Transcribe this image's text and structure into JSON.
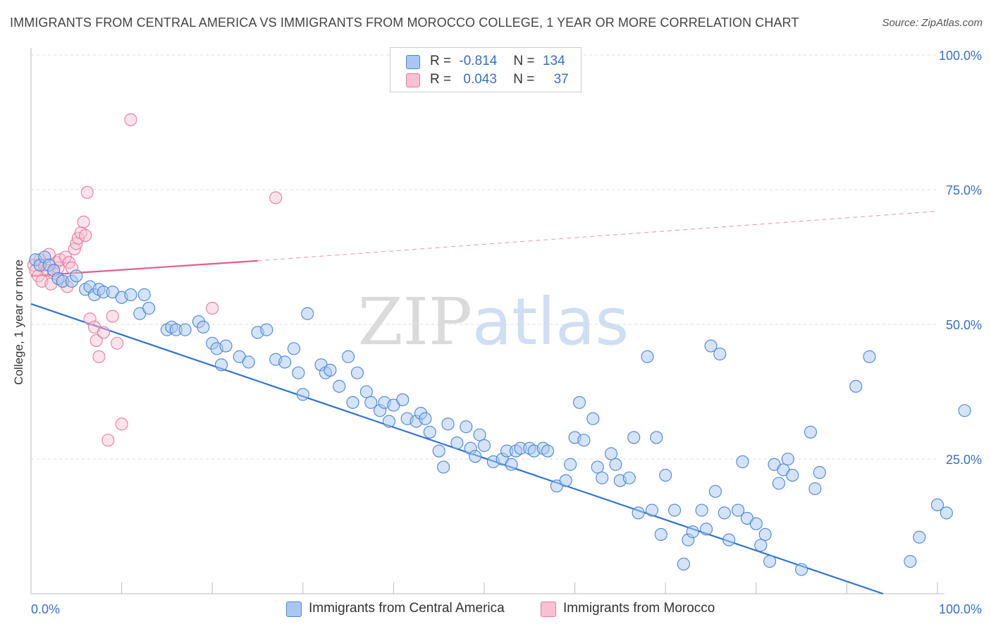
{
  "title": "IMMIGRANTS FROM CENTRAL AMERICA VS IMMIGRANTS FROM MOROCCO COLLEGE, 1 YEAR OR MORE CORRELATION CHART",
  "source": "Source: ZipAtlas.com",
  "watermark": "ZIPatlas",
  "legend": {
    "rows": [
      {
        "r_label": "R =",
        "r_value": "-0.814",
        "n_label": "N =",
        "n_value": "134"
      },
      {
        "r_label": "R =",
        "r_value": "0.043",
        "n_label": "N =",
        "n_value": "37"
      }
    ]
  },
  "colors": {
    "blue_fill": "#a9c8ef",
    "blue_stroke": "#4a86d8",
    "blue_line": "#2f74d0",
    "pink_fill": "#f7c0d3",
    "pink_stroke": "#e87aa0",
    "pink_line": "#e0608a",
    "grid": "#dddddd",
    "tick_label": "#3a6fc4"
  },
  "chart_data": {
    "type": "scatter",
    "title": "IMMIGRANTS FROM CENTRAL AMERICA VS IMMIGRANTS FROM MOROCCO COLLEGE, 1 YEAR OR MORE CORRELATION CHART",
    "xlabel": "",
    "ylabel": "College, 1 year or more",
    "xlim": [
      0,
      100
    ],
    "ylim": [
      0,
      100
    ],
    "x_tick_labels": [
      "0.0%",
      "100.0%"
    ],
    "y_tick_labels": [
      "25.0%",
      "50.0%",
      "75.0%",
      "100.0%"
    ],
    "y_ticks": [
      25,
      50,
      75,
      100
    ],
    "grid": true,
    "legend_position": "top-center",
    "series": [
      {
        "name": "Immigrants from Central America",
        "r": -0.814,
        "n": 134,
        "trend": {
          "x": [
            0,
            94
          ],
          "y": [
            53.8,
            0
          ]
        },
        "points": [
          [
            0.5,
            62
          ],
          [
            1,
            61
          ],
          [
            1.5,
            62.5
          ],
          [
            2,
            61
          ],
          [
            2.5,
            60
          ],
          [
            3,
            58.5
          ],
          [
            3.5,
            58
          ],
          [
            4.5,
            58
          ],
          [
            5,
            59
          ],
          [
            6,
            56.5
          ],
          [
            6.5,
            57
          ],
          [
            7,
            55.5
          ],
          [
            7.5,
            56.5
          ],
          [
            8,
            56
          ],
          [
            9,
            56
          ],
          [
            10,
            55
          ],
          [
            11,
            55.5
          ],
          [
            12,
            52
          ],
          [
            12.5,
            55.5
          ],
          [
            13,
            53
          ],
          [
            15,
            49
          ],
          [
            15.5,
            49.5
          ],
          [
            16,
            49
          ],
          [
            17,
            49
          ],
          [
            18.5,
            50.5
          ],
          [
            19,
            49.5
          ],
          [
            20,
            46.5
          ],
          [
            20.5,
            45.5
          ],
          [
            21,
            42.5
          ],
          [
            21.5,
            46
          ],
          [
            23,
            44
          ],
          [
            24,
            43
          ],
          [
            25,
            48.5
          ],
          [
            26,
            49
          ],
          [
            27,
            43.5
          ],
          [
            28,
            43
          ],
          [
            29,
            45.5
          ],
          [
            29.5,
            41
          ],
          [
            30,
            37
          ],
          [
            30.5,
            52
          ],
          [
            32,
            42.5
          ],
          [
            32.5,
            41
          ],
          [
            33,
            41.5
          ],
          [
            34,
            38.5
          ],
          [
            35,
            44
          ],
          [
            35.5,
            35.5
          ],
          [
            36,
            41
          ],
          [
            37,
            37.5
          ],
          [
            37.5,
            35.5
          ],
          [
            38.5,
            34
          ],
          [
            39,
            35.5
          ],
          [
            39.5,
            32
          ],
          [
            40,
            35
          ],
          [
            41,
            36
          ],
          [
            41.5,
            32.5
          ],
          [
            42.5,
            32
          ],
          [
            43,
            33.5
          ],
          [
            43.5,
            32.5
          ],
          [
            44,
            30
          ],
          [
            45,
            26.5
          ],
          [
            45.5,
            23.5
          ],
          [
            46,
            31.5
          ],
          [
            47,
            28
          ],
          [
            48,
            31
          ],
          [
            48.5,
            27
          ],
          [
            49,
            25.5
          ],
          [
            49.5,
            29.5
          ],
          [
            50,
            27.5
          ],
          [
            51,
            24.5
          ],
          [
            52,
            25
          ],
          [
            52.5,
            26.5
          ],
          [
            53,
            24
          ],
          [
            53.5,
            26.5
          ],
          [
            54,
            27
          ],
          [
            55,
            27
          ],
          [
            55.5,
            26.5
          ],
          [
            56.5,
            27
          ],
          [
            57,
            26.5
          ],
          [
            58,
            20
          ],
          [
            59,
            21
          ],
          [
            59.5,
            24
          ],
          [
            60,
            29
          ],
          [
            60.5,
            35.5
          ],
          [
            61,
            28.5
          ],
          [
            62,
            32.5
          ],
          [
            62.5,
            23.5
          ],
          [
            63,
            21.5
          ],
          [
            64,
            26
          ],
          [
            64.5,
            24
          ],
          [
            65,
            21
          ],
          [
            66,
            21.5
          ],
          [
            66.5,
            29
          ],
          [
            67,
            15
          ],
          [
            68,
            44
          ],
          [
            68.5,
            15.5
          ],
          [
            69,
            29
          ],
          [
            69.5,
            11
          ],
          [
            70,
            22
          ],
          [
            71,
            15.5
          ],
          [
            72,
            5.5
          ],
          [
            72.5,
            10
          ],
          [
            73,
            11.5
          ],
          [
            74,
            15.5
          ],
          [
            74.5,
            12
          ],
          [
            75,
            46
          ],
          [
            75.5,
            19
          ],
          [
            76,
            44.5
          ],
          [
            76.5,
            15
          ],
          [
            77,
            10
          ],
          [
            78,
            15.5
          ],
          [
            78.5,
            24.5
          ],
          [
            79,
            14
          ],
          [
            80,
            13
          ],
          [
            80.5,
            9
          ],
          [
            81,
            11
          ],
          [
            81.5,
            6
          ],
          [
            82,
            24
          ],
          [
            82.5,
            20.5
          ],
          [
            83,
            23
          ],
          [
            83.5,
            25
          ],
          [
            84,
            22
          ],
          [
            85,
            4.5
          ],
          [
            86,
            30
          ],
          [
            86.5,
            19.5
          ],
          [
            87,
            22.5
          ],
          [
            91,
            38.5
          ],
          [
            92.5,
            44
          ],
          [
            97,
            6
          ],
          [
            98,
            10.5
          ],
          [
            100,
            16.5
          ],
          [
            101,
            15
          ],
          [
            103,
            34
          ],
          [
            104,
            40
          ]
        ]
      },
      {
        "name": "Immigrants from Morocco",
        "r": 0.043,
        "n": 37,
        "trend_solid": {
          "x": [
            0,
            25
          ],
          "y": [
            59,
            61.8
          ]
        },
        "trend_dashed": {
          "x": [
            25,
            100
          ],
          "y": [
            61.8,
            71
          ]
        },
        "points": [
          [
            0.3,
            61
          ],
          [
            0.5,
            60
          ],
          [
            0.8,
            59
          ],
          [
            1,
            62
          ],
          [
            1.2,
            58
          ],
          [
            1.5,
            61
          ],
          [
            1.8,
            60
          ],
          [
            2,
            63
          ],
          [
            2.2,
            57.5
          ],
          [
            2.5,
            59.5
          ],
          [
            2.8,
            61.5
          ],
          [
            3,
            60.5
          ],
          [
            3.2,
            62
          ],
          [
            3.5,
            58
          ],
          [
            3.8,
            62.5
          ],
          [
            4,
            57
          ],
          [
            4.2,
            61.5
          ],
          [
            4.5,
            60.5
          ],
          [
            4.8,
            64
          ],
          [
            5,
            65
          ],
          [
            5.2,
            66
          ],
          [
            5.5,
            67
          ],
          [
            5.8,
            69
          ],
          [
            6,
            66.5
          ],
          [
            6.2,
            74.5
          ],
          [
            6.5,
            51
          ],
          [
            7,
            49.5
          ],
          [
            7.2,
            47
          ],
          [
            7.5,
            44
          ],
          [
            8,
            48.5
          ],
          [
            8.5,
            28.5
          ],
          [
            9,
            51.5
          ],
          [
            9.5,
            46.5
          ],
          [
            10,
            31.5
          ],
          [
            11,
            88
          ],
          [
            20,
            53
          ],
          [
            27,
            73.5
          ]
        ]
      }
    ]
  },
  "bottom_legend": [
    {
      "label": "Immigrants from Central America"
    },
    {
      "label": "Immigrants from Morocco"
    }
  ]
}
